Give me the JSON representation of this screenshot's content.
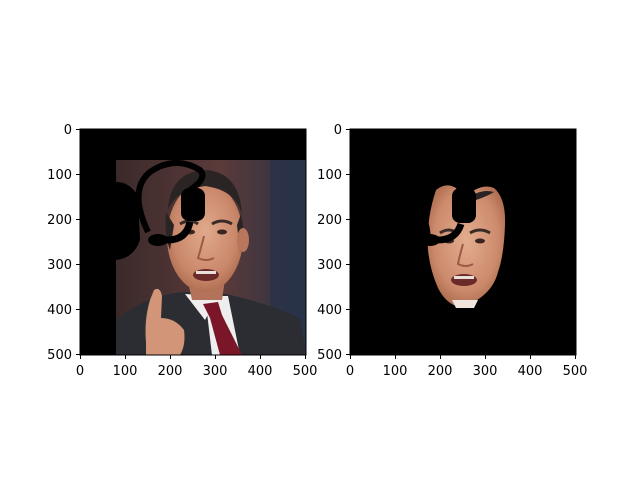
{
  "figure": {
    "background": "#ffffff",
    "panels": [
      {
        "id": "left",
        "description_hidden": false,
        "x_ticks": [
          "0",
          "100",
          "200",
          "300",
          "400",
          "500"
        ],
        "y_ticks": [
          "0",
          "100",
          "200",
          "300",
          "400",
          "500"
        ],
        "xlim": [
          0,
          500
        ],
        "ylim": [
          500,
          0
        ]
      },
      {
        "id": "right",
        "x_ticks": [
          "0",
          "100",
          "200",
          "300",
          "400",
          "500"
        ],
        "y_ticks": [
          "0",
          "100",
          "200",
          "300",
          "400",
          "500"
        ],
        "xlim": [
          0,
          500
        ],
        "ylim": [
          500,
          0
        ]
      }
    ],
    "colors": {
      "skin": "#d79a7c",
      "skin_shadow": "#a8664a",
      "hair": "#2a2524",
      "suit": "#2b2d33",
      "shirt": "#eeeeee",
      "tie": "#7a1628",
      "backdrop": "#5b3a3a",
      "occluder": "#000000"
    }
  }
}
